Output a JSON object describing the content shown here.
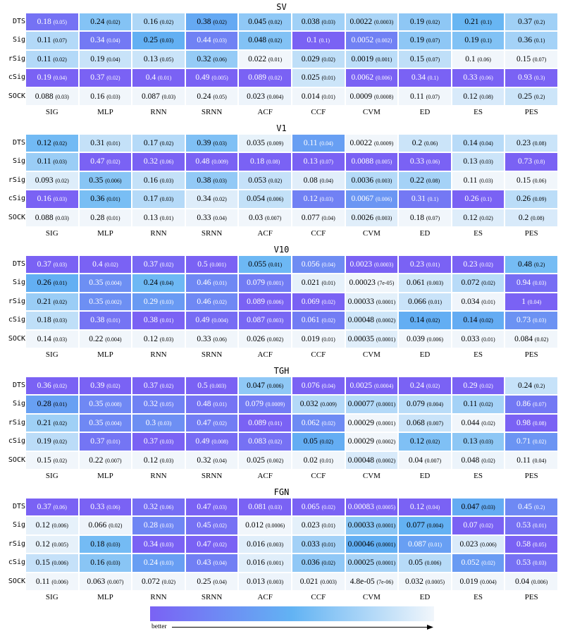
{
  "columns": [
    "SIG",
    "MLP",
    "RNN",
    "SRNN",
    "ACF",
    "CCF",
    "CVM",
    "ED",
    "ES",
    "PES"
  ],
  "rows": [
    "DTS",
    "Sig",
    "rSig",
    "cSig",
    "SOCK"
  ],
  "colors": {
    "low": "#f1f6fb",
    "mid": "#62b3f3",
    "high": "#7a62f4"
  },
  "legend": {
    "label": "better"
  },
  "chart_data": [
    {
      "type": "heatmap",
      "title": "SV",
      "values": [
        [
          "0.18",
          "0.24",
          "0.16",
          "0.38",
          "0.045",
          "0.038",
          "0.0022",
          "0.19",
          "0.21",
          "0.37"
        ],
        [
          "0.11",
          "0.34",
          "0.25",
          "0.44",
          "0.048",
          "0.1",
          "0.0052",
          "0.19",
          "0.19",
          "0.36"
        ],
        [
          "0.11",
          "0.19",
          "0.13",
          "0.32",
          "0.022",
          "0.029",
          "0.0019",
          "0.15",
          "0.1",
          "0.15"
        ],
        [
          "0.19",
          "0.37",
          "0.4",
          "0.49",
          "0.089",
          "0.025",
          "0.0062",
          "0.34",
          "0.33",
          "0.93"
        ],
        [
          "0.088",
          "0.16",
          "0.087",
          "0.24",
          "0.023",
          "0.014",
          "0.0009",
          "0.11",
          "0.12",
          "0.25"
        ]
      ],
      "stds": [
        [
          "(0.05)",
          "(0.02)",
          "(0.02)",
          "(0.02)",
          "(0.02)",
          "(0.03)",
          "(0.0003)",
          "(0.02)",
          "(0.1)",
          "(0.2)"
        ],
        [
          "(0.07)",
          "(0.04)",
          "(0.03)",
          "(0.03)",
          "(0.02)",
          "(0.1)",
          "(0.002)",
          "(0.07)",
          "(0.1)",
          "(0.1)"
        ],
        [
          "(0.02)",
          "(0.04)",
          "(0.05)",
          "(0.06)",
          "(0.01)",
          "(0.02)",
          "(0.001)",
          "(0.07)",
          "(0.06)",
          "(0.07)"
        ],
        [
          "(0.04)",
          "(0.02)",
          "(0.01)",
          "(0.005)",
          "(0.02)",
          "(0.01)",
          "(0.006)",
          "(0.1)",
          "(0.06)",
          "(0.3)"
        ],
        [
          "(0.03)",
          "(0.03)",
          "(0.03)",
          "(0.05)",
          "(0.004)",
          "(0.01)",
          "(0.0008)",
          "(0.07)",
          "(0.08)",
          "(0.2)"
        ]
      ]
    },
    {
      "type": "heatmap",
      "title": "V1",
      "values": [
        [
          "0.12",
          "0.31",
          "0.17",
          "0.39",
          "0.035",
          "0.11",
          "0.0022",
          "0.2",
          "0.14",
          "0.23"
        ],
        [
          "0.11",
          "0.47",
          "0.32",
          "0.48",
          "0.18",
          "0.13",
          "0.0088",
          "0.33",
          "0.13",
          "0.73"
        ],
        [
          "0.093",
          "0.35",
          "0.16",
          "0.38",
          "0.053",
          "0.08",
          "0.0036",
          "0.22",
          "0.11",
          "0.15"
        ],
        [
          "0.16",
          "0.36",
          "0.17",
          "0.34",
          "0.054",
          "0.12",
          "0.0067",
          "0.31",
          "0.26",
          "0.26"
        ],
        [
          "0.088",
          "0.28",
          "0.13",
          "0.33",
          "0.03",
          "0.077",
          "0.0026",
          "0.18",
          "0.12",
          "0.2"
        ]
      ],
      "stds": [
        [
          "(0.02)",
          "(0.01)",
          "(0.02)",
          "(0.03)",
          "(0.009)",
          "(0.04)",
          "(0.0009)",
          "(0.06)",
          "(0.04)",
          "(0.08)"
        ],
        [
          "(0.03)",
          "(0.02)",
          "(0.06)",
          "(0.009)",
          "(0.08)",
          "(0.07)",
          "(0.005)",
          "(0.06)",
          "(0.03)",
          "(0.8)"
        ],
        [
          "(0.02)",
          "(0.006)",
          "(0.03)",
          "(0.03)",
          "(0.02)",
          "(0.04)",
          "(0.003)",
          "(0.08)",
          "(0.03)",
          "(0.06)"
        ],
        [
          "(0.03)",
          "(0.01)",
          "(0.03)",
          "(0.02)",
          "(0.006)",
          "(0.03)",
          "(0.006)",
          "(0.1)",
          "(0.1)",
          "(0.09)"
        ],
        [
          "(0.03)",
          "(0.01)",
          "(0.01)",
          "(0.04)",
          "(0.007)",
          "(0.04)",
          "(0.003)",
          "(0.07)",
          "(0.02)",
          "(0.08)"
        ]
      ]
    },
    {
      "type": "heatmap",
      "title": "V10",
      "values": [
        [
          "0.37",
          "0.4",
          "0.37",
          "0.5",
          "0.055",
          "0.056",
          "0.0023",
          "0.23",
          "0.23",
          "0.48"
        ],
        [
          "0.26",
          "0.35",
          "0.24",
          "0.46",
          "0.079",
          "0.021",
          "0.00023",
          "0.061",
          "0.072",
          "0.94"
        ],
        [
          "0.21",
          "0.35",
          "0.29",
          "0.46",
          "0.089",
          "0.069",
          "0.00033",
          "0.066",
          "0.034",
          "1"
        ],
        [
          "0.18",
          "0.38",
          "0.38",
          "0.49",
          "0.087",
          "0.061",
          "0.00048",
          "0.14",
          "0.14",
          "0.73"
        ],
        [
          "0.14",
          "0.22",
          "0.12",
          "0.33",
          "0.026",
          "0.019",
          "0.00035",
          "0.039",
          "0.033",
          "0.084"
        ]
      ],
      "stds": [
        [
          "(0.03)",
          "(0.02)",
          "(0.02)",
          "(0.001)",
          "(0.01)",
          "(0.04)",
          "(0.0003)",
          "(0.01)",
          "(0.02)",
          "(0.2)"
        ],
        [
          "(0.01)",
          "(0.004)",
          "(0.04)",
          "(0.01)",
          "(0.001)",
          "(0.01)",
          "(7e-05)",
          "(0.003)",
          "(0.02)",
          "(0.03)"
        ],
        [
          "(0.02)",
          "(0.002)",
          "(0.03)",
          "(0.02)",
          "(0.006)",
          "(0.02)",
          "(0.0001)",
          "(0.01)",
          "(0.01)",
          "(0.04)"
        ],
        [
          "(0.03)",
          "(0.01)",
          "(0.01)",
          "(0.004)",
          "(0.003)",
          "(0.02)",
          "(0.0002)",
          "(0.02)",
          "(0.02)",
          "(0.03)"
        ],
        [
          "(0.03)",
          "(0.004)",
          "(0.03)",
          "(0.06)",
          "(0.002)",
          "(0.01)",
          "(0.0001)",
          "(0.006)",
          "(0.01)",
          "(0.02)"
        ]
      ]
    },
    {
      "type": "heatmap",
      "title": "TGH",
      "values": [
        [
          "0.36",
          "0.39",
          "0.37",
          "0.5",
          "0.047",
          "0.076",
          "0.0025",
          "0.24",
          "0.29",
          "0.24"
        ],
        [
          "0.28",
          "0.35",
          "0.32",
          "0.48",
          "0.079",
          "0.032",
          "0.00077",
          "0.079",
          "0.11",
          "0.86"
        ],
        [
          "0.21",
          "0.35",
          "0.3",
          "0.47",
          "0.089",
          "0.062",
          "0.00029",
          "0.068",
          "0.044",
          "0.98"
        ],
        [
          "0.19",
          "0.37",
          "0.37",
          "0.49",
          "0.083",
          "0.05",
          "0.00029",
          "0.12",
          "0.13",
          "0.71"
        ],
        [
          "0.15",
          "0.22",
          "0.12",
          "0.32",
          "0.025",
          "0.02",
          "0.00048",
          "0.04",
          "0.048",
          "0.11"
        ]
      ],
      "stds": [
        [
          "(0.02)",
          "(0.02)",
          "(0.02)",
          "(0.003)",
          "(0.006)",
          "(0.04)",
          "(0.0004)",
          "(0.02)",
          "(0.02)",
          "(0.2)"
        ],
        [
          "(0.01)",
          "(0.008)",
          "(0.05)",
          "(0.01)",
          "(0.0009)",
          "(0.009)",
          "(0.0001)",
          "(0.004)",
          "(0.02)",
          "(0.07)"
        ],
        [
          "(0.02)",
          "(0.004)",
          "(0.03)",
          "(0.02)",
          "(0.01)",
          "(0.02)",
          "(0.0001)",
          "(0.007)",
          "(0.02)",
          "(0.08)"
        ],
        [
          "(0.02)",
          "(0.01)",
          "(0.03)",
          "(0.008)",
          "(0.02)",
          "(0.02)",
          "(0.0002)",
          "(0.02)",
          "(0.03)",
          "(0.02)"
        ],
        [
          "(0.02)",
          "(0.007)",
          "(0.03)",
          "(0.04)",
          "(0.002)",
          "(0.01)",
          "(0.0002)",
          "(0.007)",
          "(0.02)",
          "(0.04)"
        ]
      ]
    },
    {
      "type": "heatmap",
      "title": "FGN",
      "values": [
        [
          "0.37",
          "0.33",
          "0.32",
          "0.47",
          "0.081",
          "0.065",
          "0.00083",
          "0.12",
          "0.047",
          "0.45"
        ],
        [
          "0.12",
          "0.066",
          "0.28",
          "0.45",
          "0.012",
          "0.023",
          "0.00033",
          "0.077",
          "0.07",
          "0.53"
        ],
        [
          "0.12",
          "0.18",
          "0.34",
          "0.47",
          "0.016",
          "0.033",
          "0.00046",
          "0.087",
          "0.023",
          "0.58"
        ],
        [
          "0.15",
          "0.16",
          "0.24",
          "0.43",
          "0.016",
          "0.036",
          "0.00025",
          "0.05",
          "0.052",
          "0.53"
        ],
        [
          "0.11",
          "0.063",
          "0.072",
          "0.25",
          "0.013",
          "0.021",
          "4.8e-05",
          "0.032",
          "0.019",
          "0.04"
        ]
      ],
      "stds": [
        [
          "(0.06)",
          "(0.06)",
          "(0.06)",
          "(0.03)",
          "(0.03)",
          "(0.02)",
          "(0.0005)",
          "(0.04)",
          "(0.03)",
          "(0.2)"
        ],
        [
          "(0.006)",
          "(0.02)",
          "(0.03)",
          "(0.02)",
          "(0.0006)",
          "(0.01)",
          "(0.0001)",
          "(0.004)",
          "(0.02)",
          "(0.01)"
        ],
        [
          "(0.005)",
          "(0.03)",
          "(0.03)",
          "(0.02)",
          "(0.003)",
          "(0.01)",
          "(0.0001)",
          "(0.01)",
          "(0.006)",
          "(0.05)"
        ],
        [
          "(0.006)",
          "(0.03)",
          "(0.03)",
          "(0.04)",
          "(0.001)",
          "(0.02)",
          "(0.0001)",
          "(0.006)",
          "(0.02)",
          "(0.03)"
        ],
        [
          "(0.006)",
          "(0.007)",
          "(0.02)",
          "(0.04)",
          "(0.003)",
          "(0.003)",
          "(7e-06)",
          "(0.0005)",
          "(0.004)",
          "(0.006)"
        ]
      ]
    }
  ]
}
